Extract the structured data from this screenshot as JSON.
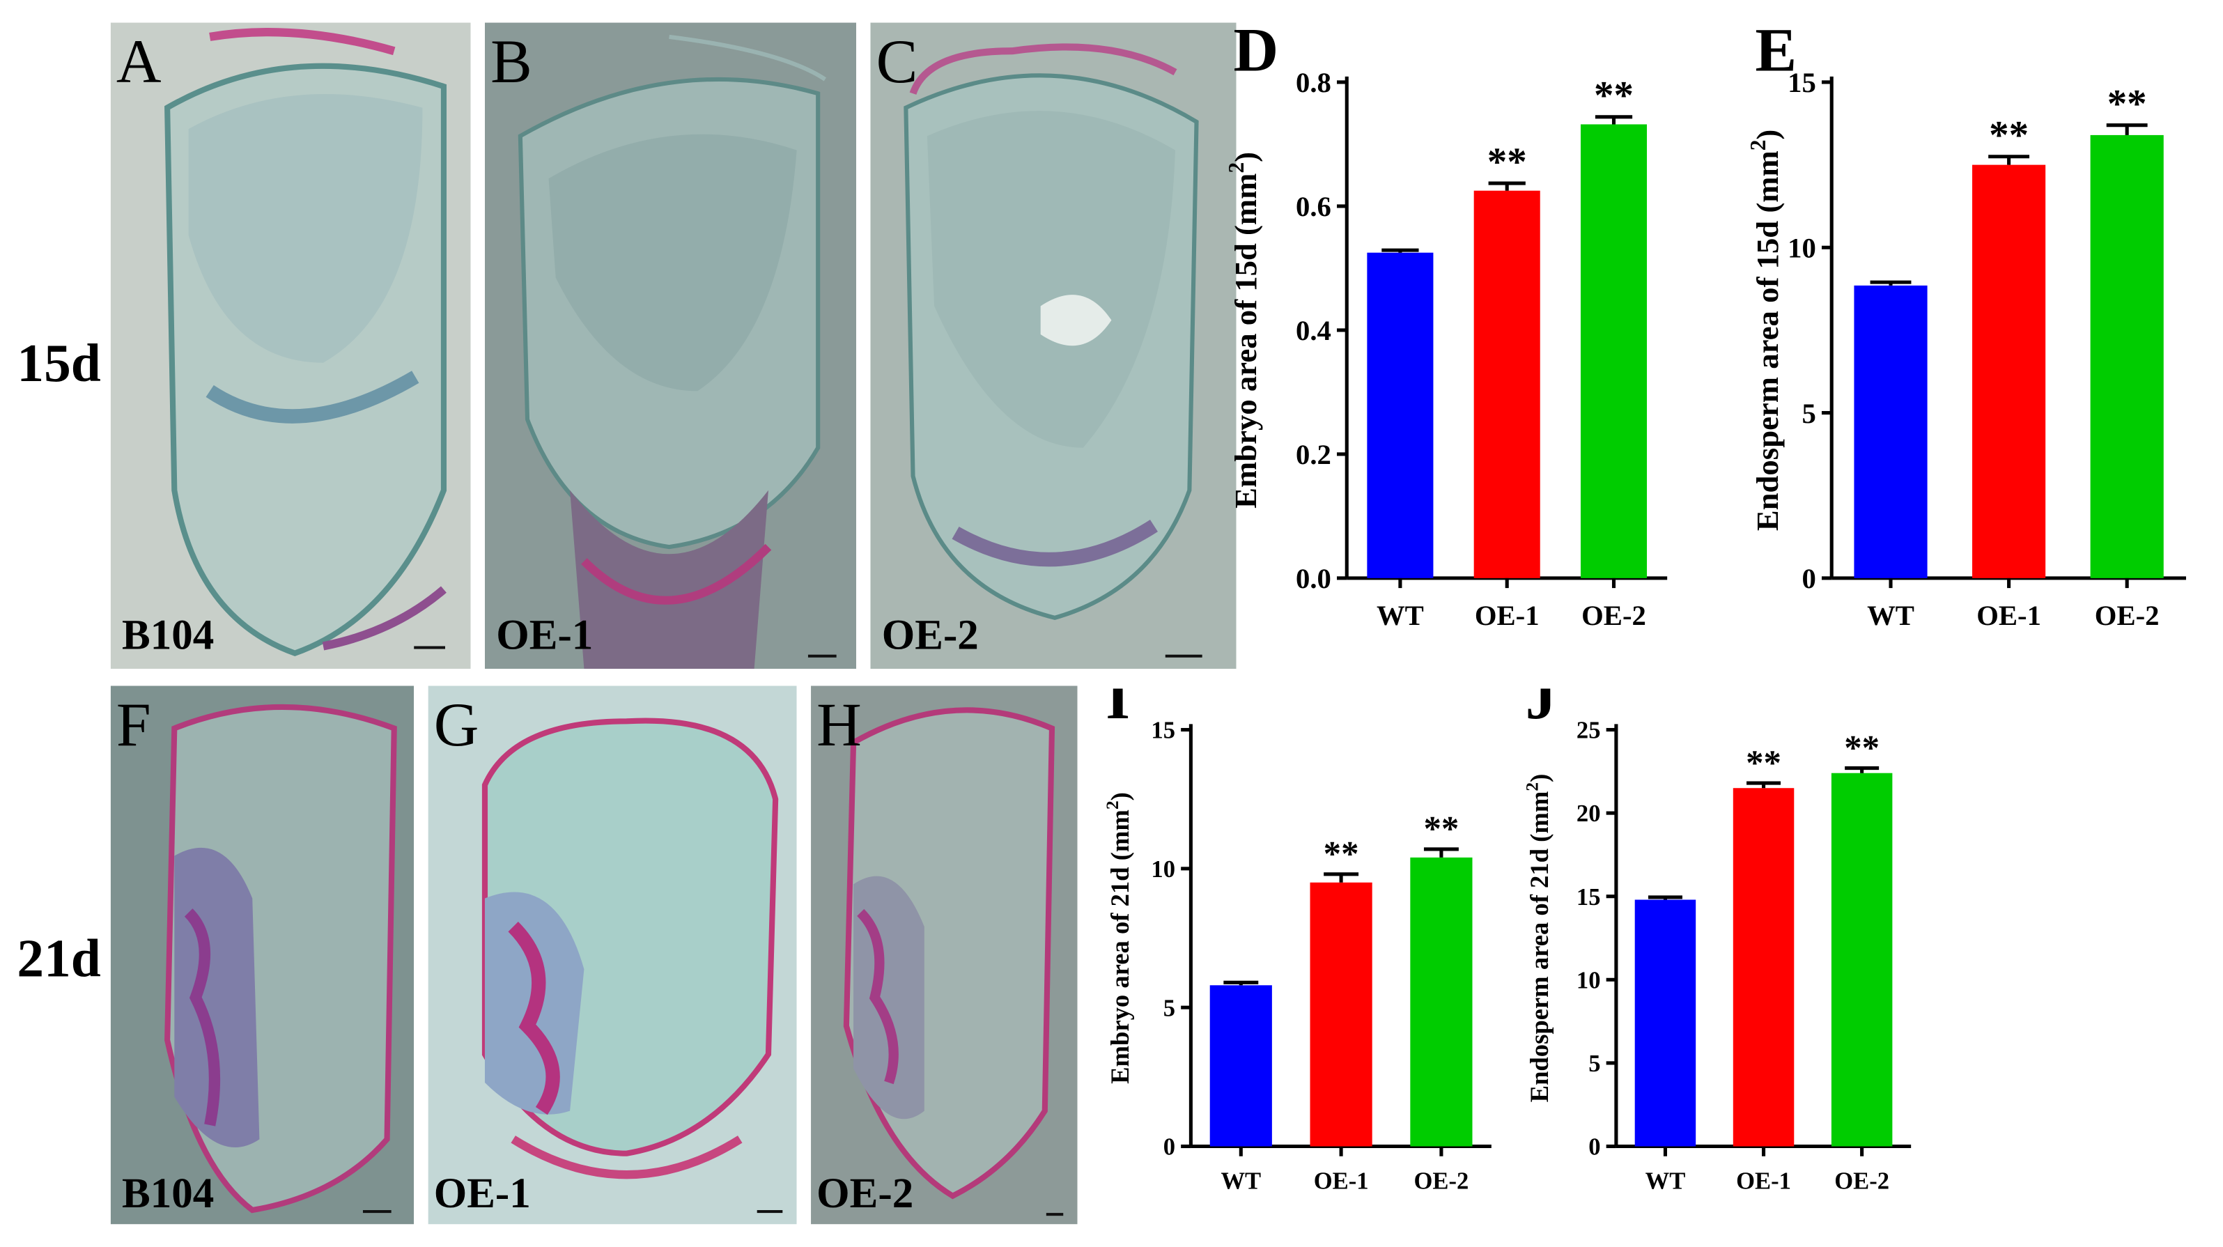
{
  "panels": {
    "A": {
      "letter": "A",
      "label": "B104"
    },
    "B": {
      "letter": "B",
      "label": "OE-1"
    },
    "C": {
      "letter": "C",
      "label": "OE-2"
    },
    "F": {
      "letter": "F",
      "label": "B104"
    },
    "G": {
      "letter": "G",
      "label": "OE-1"
    },
    "H": {
      "letter": "H",
      "label": "OE-2"
    }
  },
  "row_labels": {
    "top": "15d",
    "bottom": "21d"
  },
  "colors": {
    "WT": "#0000ff",
    "OE-1": "#ff0000",
    "OE-2": "#00cc00"
  },
  "chart_data": [
    {
      "panel": "D",
      "type": "bar",
      "categories": [
        "WT",
        "OE-1",
        "OE-2"
      ],
      "values": [
        0.525,
        0.625,
        0.732
      ],
      "errors": [
        0.004,
        0.012,
        0.012
      ],
      "significance": [
        "",
        "**",
        "**"
      ],
      "ylabel": "Embryo area of 15d (mm",
      "ylabel_sup": "2",
      "ylabel_end": ")",
      "ylim": [
        0,
        0.8
      ],
      "yticks": [
        "0.0",
        "0.2",
        "0.4",
        "0.6",
        "0.8"
      ],
      "ytick_values": [
        0,
        0.2,
        0.4,
        0.6,
        0.8
      ]
    },
    {
      "panel": "E",
      "type": "bar",
      "categories": [
        "WT",
        "OE-1",
        "OE-2"
      ],
      "values": [
        8.85,
        12.5,
        13.4
      ],
      "errors": [
        0.1,
        0.25,
        0.3
      ],
      "significance": [
        "",
        "**",
        "**"
      ],
      "ylabel": "Endosperm area of 15d (mm",
      "ylabel_sup": "2",
      "ylabel_end": ")",
      "ylim": [
        0,
        15
      ],
      "yticks": [
        "0",
        "5",
        "10",
        "15"
      ],
      "ytick_values": [
        0,
        5,
        10,
        15
      ]
    },
    {
      "panel": "I",
      "type": "bar",
      "categories": [
        "WT",
        "OE-1",
        "OE-2"
      ],
      "values": [
        5.8,
        9.5,
        10.4
      ],
      "errors": [
        0.1,
        0.3,
        0.3
      ],
      "significance": [
        "",
        "**",
        "**"
      ],
      "ylabel": "Embryo area of 21d (mm",
      "ylabel_sup": "2",
      "ylabel_end": ")",
      "ylim": [
        0,
        15
      ],
      "yticks": [
        "0",
        "5",
        "10",
        "15"
      ],
      "ytick_values": [
        0,
        5,
        10,
        15
      ]
    },
    {
      "panel": "J",
      "type": "bar",
      "categories": [
        "WT",
        "OE-1",
        "OE-2"
      ],
      "values": [
        14.8,
        21.5,
        22.4
      ],
      "errors": [
        0.15,
        0.3,
        0.3
      ],
      "significance": [
        "",
        "**",
        "**"
      ],
      "ylabel": "Endosperm area of 21d (mm",
      "ylabel_sup": "2",
      "ylabel_end": ")",
      "ylim": [
        0,
        25
      ],
      "yticks": [
        "0",
        "5",
        "10",
        "15",
        "20",
        "25"
      ],
      "ytick_values": [
        0,
        5,
        10,
        15,
        20,
        25
      ]
    }
  ]
}
